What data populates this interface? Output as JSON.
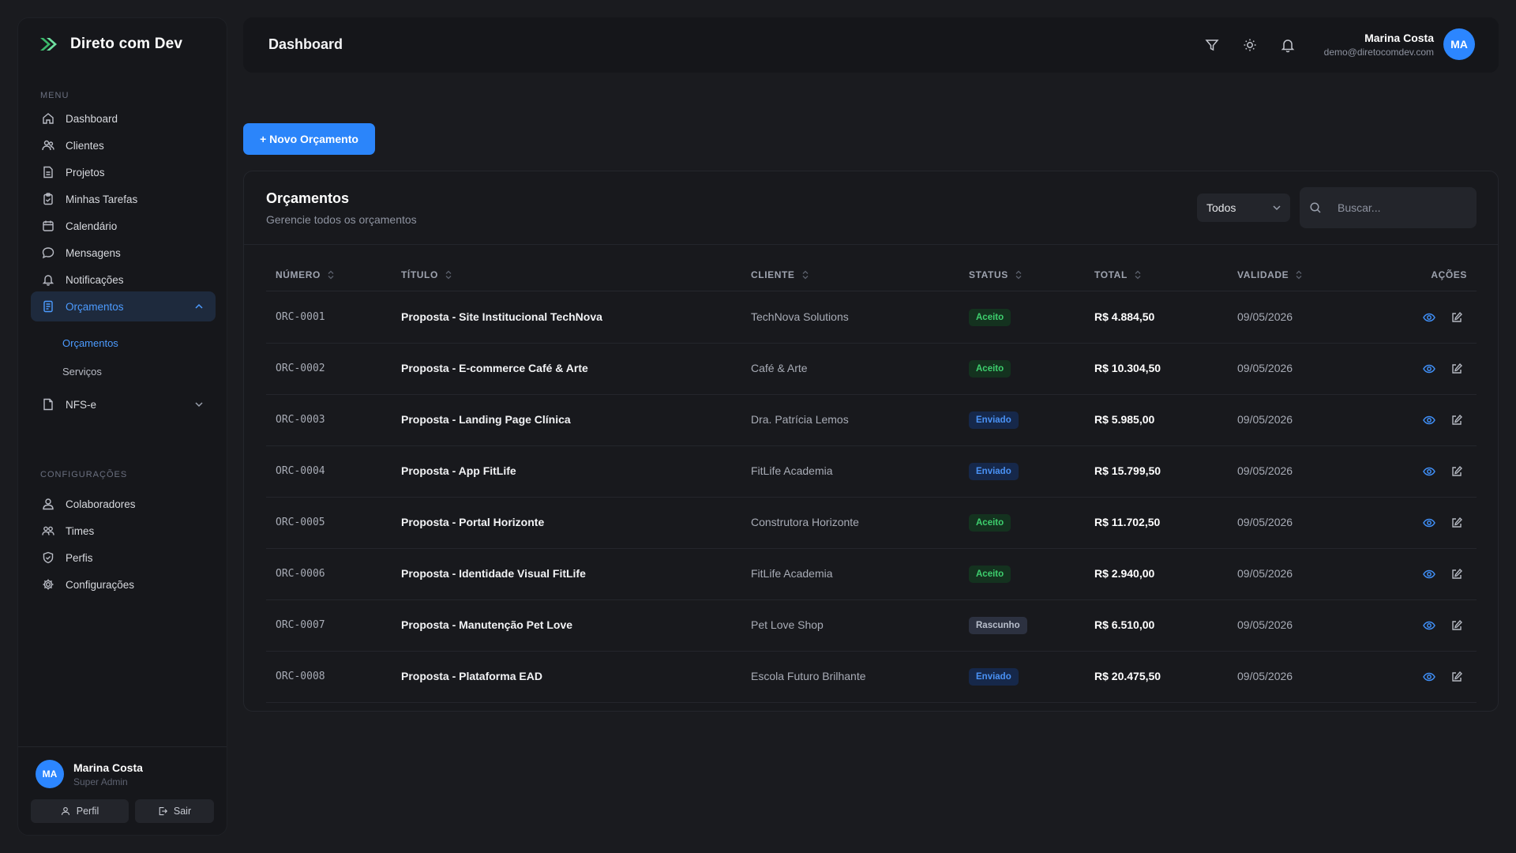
{
  "brand": {
    "name": "Direto com Dev",
    "logo_color": "#4cd07d"
  },
  "sidebar": {
    "menu_label": "MENU",
    "config_label": "CONFIGURAÇÕES",
    "items": [
      {
        "label": "Dashboard",
        "icon": "home-icon"
      },
      {
        "label": "Clientes",
        "icon": "users-icon"
      },
      {
        "label": "Projetos",
        "icon": "file-icon"
      },
      {
        "label": "Minhas Tarefas",
        "icon": "clipboard-check-icon"
      },
      {
        "label": "Calendário",
        "icon": "calendar-icon"
      },
      {
        "label": "Mensagens",
        "icon": "message-icon"
      },
      {
        "label": "Notificações",
        "icon": "bell-icon"
      },
      {
        "label": "Orçamentos",
        "icon": "receipt-icon",
        "active": true,
        "expanded": true
      },
      {
        "label": "NFS-e",
        "icon": "invoice-icon",
        "expanded": false
      }
    ],
    "sub_items": [
      {
        "label": "Orçamentos",
        "active": true
      },
      {
        "label": "Serviços",
        "active": false
      }
    ],
    "config_items": [
      {
        "label": "Colaboradores",
        "icon": "user-icon"
      },
      {
        "label": "Times",
        "icon": "team-icon"
      },
      {
        "label": "Perfis",
        "icon": "shield-icon"
      },
      {
        "label": "Configurações",
        "icon": "gear-icon"
      }
    ],
    "footer": {
      "initials": "MA",
      "name": "Marina Costa",
      "role": "Super Admin",
      "profile_label": "Perfil",
      "logout_label": "Sair"
    }
  },
  "header": {
    "title": "Dashboard",
    "user": {
      "name": "Marina Costa",
      "email": "demo@diretocomdev.com",
      "initials": "MA"
    }
  },
  "actions": {
    "new_label": "+ Novo Orçamento"
  },
  "card": {
    "title": "Orçamentos",
    "subtitle": "Gerencie todos os orçamentos",
    "filter_value": "Todos",
    "search_placeholder": "Buscar..."
  },
  "table": {
    "columns": [
      "NÚMERO",
      "TÍTULO",
      "CLIENTE",
      "STATUS",
      "TOTAL",
      "VALIDADE",
      "AÇÕES"
    ],
    "rows": [
      {
        "numero": "ORC-0001",
        "titulo": "Proposta - Site Institucional TechNova",
        "cliente": "TechNova Solutions",
        "status": "Aceito",
        "total": "R$ 4.884,50",
        "validade": "09/05/2026"
      },
      {
        "numero": "ORC-0002",
        "titulo": "Proposta - E-commerce Café & Arte",
        "cliente": "Café & Arte",
        "status": "Aceito",
        "total": "R$ 10.304,50",
        "validade": "09/05/2026"
      },
      {
        "numero": "ORC-0003",
        "titulo": "Proposta - Landing Page Clínica",
        "cliente": "Dra. Patrícia Lemos",
        "status": "Enviado",
        "total": "R$ 5.985,00",
        "validade": "09/05/2026"
      },
      {
        "numero": "ORC-0004",
        "titulo": "Proposta - App FitLife",
        "cliente": "FitLife Academia",
        "status": "Enviado",
        "total": "R$ 15.799,50",
        "validade": "09/05/2026"
      },
      {
        "numero": "ORC-0005",
        "titulo": "Proposta - Portal Horizonte",
        "cliente": "Construtora Horizonte",
        "status": "Aceito",
        "total": "R$ 11.702,50",
        "validade": "09/05/2026"
      },
      {
        "numero": "ORC-0006",
        "titulo": "Proposta - Identidade Visual FitLife",
        "cliente": "FitLife Academia",
        "status": "Aceito",
        "total": "R$ 2.940,00",
        "validade": "09/05/2026"
      },
      {
        "numero": "ORC-0007",
        "titulo": "Proposta - Manutenção Pet Love",
        "cliente": "Pet Love Shop",
        "status": "Rascunho",
        "total": "R$ 6.510,00",
        "validade": "09/05/2026"
      },
      {
        "numero": "ORC-0008",
        "titulo": "Proposta - Plataforma EAD",
        "cliente": "Escola Futuro Brilhante",
        "status": "Enviado",
        "total": "R$ 20.475,50",
        "validade": "09/05/2026"
      }
    ]
  },
  "colors": {
    "accent": "#2b85fa",
    "status_aceito": "#3ecf6e",
    "status_enviado": "#4a92f5",
    "status_rascunho": "#b9bfcc"
  }
}
